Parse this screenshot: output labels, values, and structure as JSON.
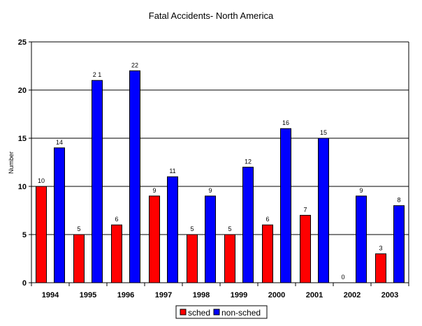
{
  "chart_data": {
    "type": "bar",
    "title": "Fatal Accidents- North America",
    "ylabel": "Number",
    "xlabel": "",
    "ylim": [
      0,
      25
    ],
    "yticks": [
      0,
      5,
      10,
      15,
      20,
      25
    ],
    "grid": true,
    "legend": "bottom",
    "categories": [
      "1994",
      "1995",
      "1996",
      "1997",
      "1998",
      "1999",
      "2000",
      "2001",
      "2002",
      "2003"
    ],
    "series": [
      {
        "name": "sched",
        "color": "#ff0000",
        "values": [
          10,
          5,
          6,
          9,
          5,
          5,
          6,
          7,
          0,
          3
        ],
        "labels": [
          "10",
          "5",
          "6",
          "9",
          "5",
          "5",
          "6",
          "7",
          "0",
          "3"
        ]
      },
      {
        "name": "non-sched",
        "color": "#0000ff",
        "values": [
          14,
          21,
          22,
          11,
          9,
          12,
          16,
          15,
          9,
          8
        ],
        "labels": [
          "14",
          "2 1",
          "22",
          "11",
          "9",
          "12",
          "16",
          "15",
          "9",
          "8"
        ]
      }
    ]
  }
}
